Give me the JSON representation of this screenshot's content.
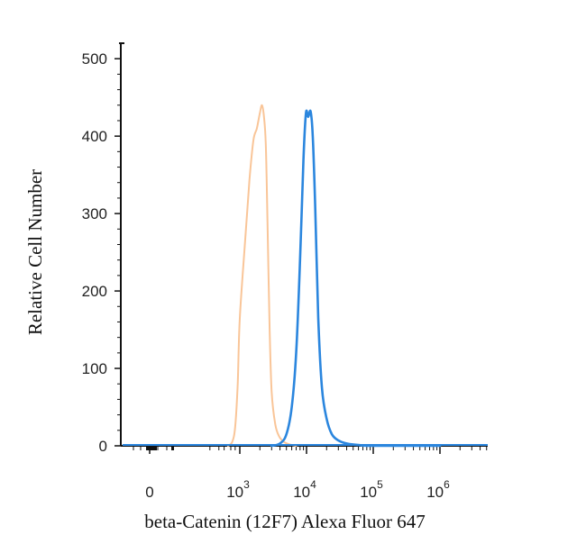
{
  "chart_data": {
    "type": "line",
    "title": "",
    "xlabel": "beta-Catenin (12F7) Alexa Fluor 647",
    "ylabel": "Relative Cell Number",
    "x_scale": "biexponential",
    "ylim": [
      0,
      520
    ],
    "yticks": [
      0,
      100,
      200,
      300,
      400,
      500
    ],
    "ytick_labels": [
      "0",
      "100",
      "200",
      "300",
      "400",
      "500"
    ],
    "xticks": [
      {
        "value": 0,
        "base": "0",
        "exp": ""
      },
      {
        "value": 1000,
        "base": "10",
        "exp": "3"
      },
      {
        "value": 10000,
        "base": "10",
        "exp": "4"
      },
      {
        "value": 100000,
        "base": "10",
        "exp": "5"
      },
      {
        "value": 1000000,
        "base": "10",
        "exp": "6"
      }
    ],
    "grid": false,
    "legend": "none",
    "series": [
      {
        "color": "#f9c598",
        "x": [
          400,
          560,
          700,
          850,
          1000,
          1200,
          1400,
          1600,
          1800,
          2000,
          2150,
          2300,
          2450,
          2600,
          2800,
          3000,
          3400,
          3900,
          4600,
          5500,
          7000
        ],
        "y": [
          0,
          5,
          25,
          80,
          165,
          265,
          345,
          395,
          410,
          430,
          440,
          425,
          390,
          290,
          150,
          70,
          28,
          12,
          5,
          2,
          0
        ]
      },
      {
        "color": "#2b86de",
        "x": [
          3000,
          4000,
          5000,
          6000,
          7000,
          8000,
          9000,
          9800,
          10600,
          11500,
          12400,
          13500,
          15000,
          17000,
          20000,
          24000,
          30000,
          40000,
          60000,
          100000,
          1000000
        ],
        "y": [
          0,
          3,
          15,
          50,
          120,
          240,
          370,
          430,
          425,
          432,
          400,
          310,
          165,
          75,
          35,
          15,
          7,
          3,
          1,
          0,
          0
        ]
      }
    ]
  }
}
